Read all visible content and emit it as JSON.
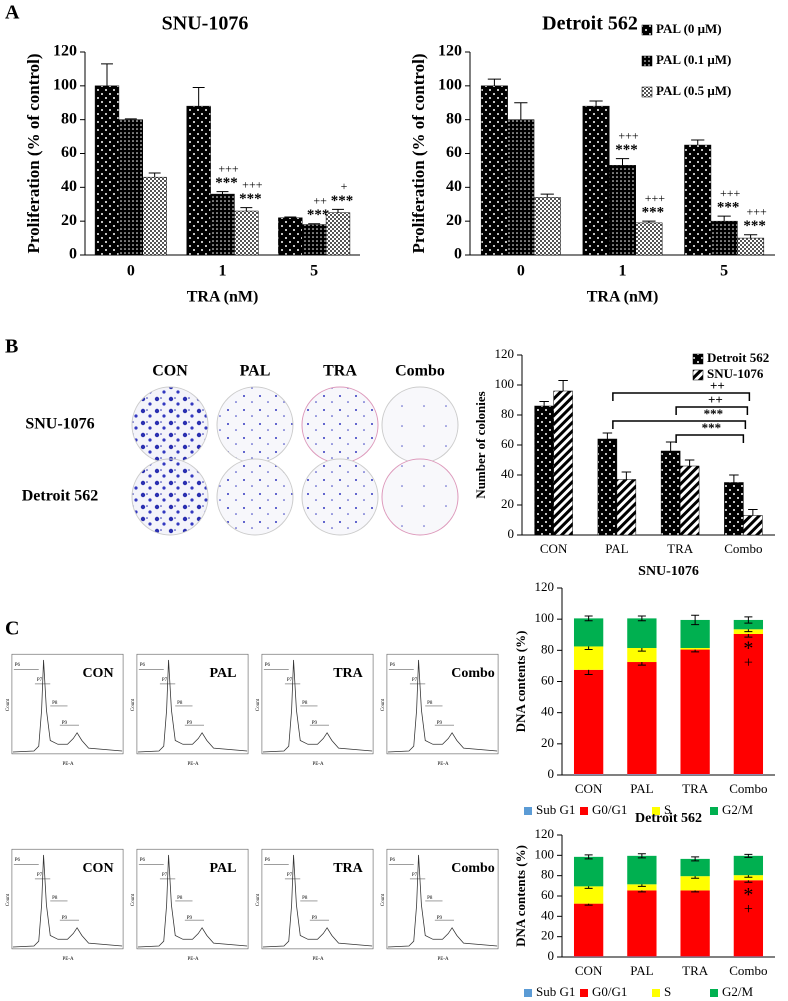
{
  "panel_labels": [
    "A",
    "B",
    "C"
  ],
  "chart_data": [
    {
      "type": "bar",
      "title": "SNU-1076",
      "xlabel": "TRA (nM)",
      "ylabel": "Proliferation (% of control)",
      "categories": [
        "0",
        "1",
        "5"
      ],
      "ylim": [
        0,
        120
      ],
      "yticks": [
        0,
        20,
        40,
        60,
        80,
        100,
        120
      ],
      "series": [
        {
          "color": "#000000",
          "pattern": "dots",
          "values": [
            100,
            88,
            22
          ],
          "errors": [
            13,
            11,
            0.5
          ]
        },
        {
          "color": "#000000",
          "pattern": "dense-dots",
          "values": [
            80,
            36,
            18
          ],
          "errors": [
            0.5,
            1.5,
            0.5
          ],
          "annotations": [
            null,
            "***",
            "***"
          ],
          "annotations2": [
            null,
            "+++",
            "++"
          ]
        },
        {
          "color": "#888888",
          "pattern": "checker",
          "values": [
            46,
            26,
            25
          ],
          "errors": [
            2.5,
            2,
            2
          ],
          "annotations": [
            null,
            "***",
            "***"
          ],
          "annotations2": [
            null,
            "+++",
            "+"
          ]
        }
      ]
    },
    {
      "type": "bar",
      "title": "Detroit 562",
      "xlabel": "TRA (nM)",
      "ylabel": "Proliferation (% of control)",
      "categories": [
        "0",
        "1",
        "5"
      ],
      "ylim": [
        0,
        120
      ],
      "yticks": [
        0,
        20,
        40,
        60,
        80,
        100,
        120
      ],
      "legend": "top-right",
      "series": [
        {
          "name": "PAL (0 μM)",
          "color": "#000000",
          "pattern": "dots",
          "values": [
            100,
            88,
            65
          ],
          "errors": [
            4,
            3,
            3
          ]
        },
        {
          "name": "PAL (0.1 μM)",
          "color": "#000000",
          "pattern": "dense-dots",
          "values": [
            80,
            53,
            20
          ],
          "errors": [
            10,
            4,
            3
          ],
          "annotations": [
            null,
            "***",
            "***"
          ],
          "annotations2": [
            null,
            "+++",
            "+++"
          ]
        },
        {
          "name": "PAL (0.5 μM)",
          "color": "#888888",
          "pattern": "checker",
          "values": [
            34,
            19,
            10
          ],
          "errors": [
            2,
            1,
            2
          ],
          "annotations": [
            null,
            "***",
            "***"
          ],
          "annotations2": [
            null,
            "+++",
            "+++"
          ]
        }
      ]
    },
    {
      "type": "bar",
      "ylabel": "Number of colonies",
      "categories": [
        "CON",
        "PAL",
        "TRA",
        "Combo"
      ],
      "ylim": [
        0,
        120
      ],
      "yticks": [
        0,
        20,
        40,
        60,
        80,
        100,
        120
      ],
      "legend": "top-right",
      "series": [
        {
          "name": "Detroit 562",
          "color": "#000000",
          "pattern": "dots",
          "values": [
            86,
            64,
            56,
            35
          ],
          "errors": [
            3,
            4,
            6,
            5
          ]
        },
        {
          "name": "SNU-1076",
          "color": "#000000",
          "pattern": "hatch",
          "values": [
            96,
            37,
            46,
            13
          ],
          "errors": [
            7,
            5,
            4,
            4
          ]
        }
      ],
      "comparisons": [
        {
          "from": "PAL",
          "to": "Combo",
          "label": "++"
        },
        {
          "from": "TRA",
          "to": "Combo",
          "label": "++"
        },
        {
          "from": "PAL",
          "to": "Combo",
          "label": "***"
        },
        {
          "from": "TRA",
          "to": "Combo",
          "label": "***"
        }
      ]
    },
    {
      "type": "stacked_bar",
      "title": "SNU-1076",
      "ylabel": "DNA contents (%)",
      "categories": [
        "CON",
        "PAL",
        "TRA",
        "Combo"
      ],
      "ylim": [
        0,
        120
      ],
      "yticks": [
        0,
        20,
        40,
        60,
        80,
        100,
        120
      ],
      "legend": "bottom",
      "series": [
        {
          "name": "Sub G1",
          "color": "#5b9bd5",
          "values": [
            0.5,
            0.5,
            0.5,
            0.5
          ]
        },
        {
          "name": "G0/G1",
          "color": "#ff0000",
          "values": [
            67,
            72,
            80,
            90
          ],
          "errors": [
            3,
            2,
            1.5,
            2
          ],
          "annotations": [
            null,
            null,
            null,
            "*"
          ],
          "annotations2": [
            null,
            null,
            null,
            "+"
          ]
        },
        {
          "name": "S",
          "color": "#ffff00",
          "values": [
            15,
            9,
            1,
            3
          ],
          "errors": [
            2,
            2,
            null,
            1.5
          ]
        },
        {
          "name": "G2/M",
          "color": "#00b050",
          "values": [
            18,
            19,
            18,
            6
          ],
          "errors": [
            1.5,
            1.5,
            3,
            2
          ]
        }
      ]
    },
    {
      "type": "stacked_bar",
      "title": "Detroit 562",
      "ylabel": "DNA contents (%)",
      "categories": [
        "CON",
        "PAL",
        "TRA",
        "Combo"
      ],
      "ylim": [
        0,
        120
      ],
      "yticks": [
        0,
        20,
        40,
        60,
        80,
        100,
        120
      ],
      "legend": "bottom",
      "series": [
        {
          "name": "Sub G1",
          "color": "#5b9bd5",
          "values": [
            0.5,
            0.5,
            0.5,
            0.5
          ]
        },
        {
          "name": "G0/G1",
          "color": "#ff0000",
          "values": [
            52,
            65,
            65,
            75
          ],
          "errors": [
            1.5,
            1.5,
            1.5,
            2
          ],
          "annotations": [
            null,
            null,
            null,
            "*"
          ],
          "annotations2": [
            null,
            null,
            null,
            "+"
          ]
        },
        {
          "name": "S",
          "color": "#ffff00",
          "values": [
            17,
            6,
            14,
            5
          ],
          "errors": [
            2,
            2,
            2,
            2
          ]
        },
        {
          "name": "G2/M",
          "color": "#00b050",
          "values": [
            29,
            28,
            17,
            19
          ],
          "errors": [
            2,
            2,
            2,
            1.5
          ]
        }
      ]
    }
  ],
  "colony_images": {
    "columns": [
      "CON",
      "PAL",
      "TRA",
      "Combo"
    ],
    "rows": [
      "SNU-1076",
      "Detroit 562"
    ]
  },
  "flow_cytometry": {
    "rows": [
      [
        "CON",
        "PAL",
        "TRA",
        "Combo"
      ],
      [
        "CON",
        "PAL",
        "TRA",
        "Combo"
      ]
    ],
    "gates": [
      "P6",
      "P7",
      "P8",
      "P9"
    ],
    "ylabel": "Count",
    "xlabel": "PE-A"
  }
}
